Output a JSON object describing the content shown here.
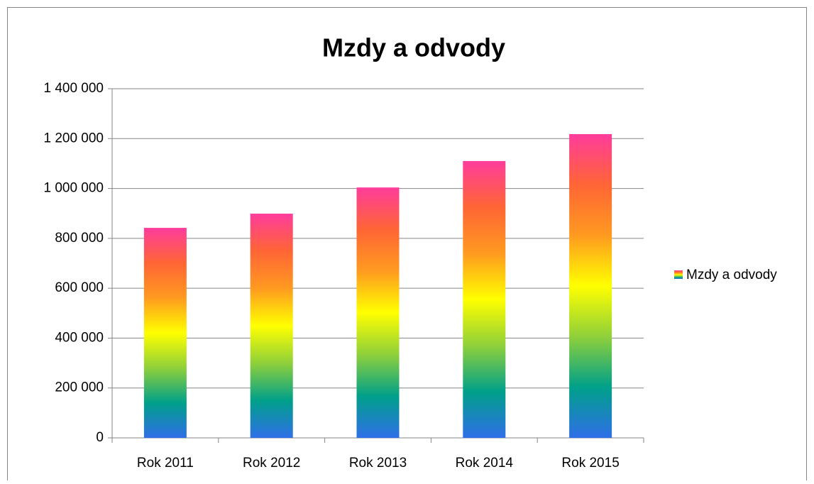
{
  "chart_data": {
    "type": "bar",
    "title": "Mzdy a odvody",
    "categories": [
      "Rok 2011",
      "Rok 2012",
      "Rok 2013",
      "Rok 2014",
      "Rok 2015"
    ],
    "series": [
      {
        "name": "Mzdy a odvody",
        "colors": [
          "#2f6fe8",
          "#00a08a",
          "#8fd03a",
          "#ffff00",
          "#ff9a20",
          "#ff6535",
          "#ff3c9c"
        ],
        "values": [
          842000,
          899000,
          1004000,
          1110000,
          1218000
        ]
      }
    ],
    "ylim": [
      0,
      1400000
    ],
    "yticks": [
      0,
      {
        "value": 200000,
        "label": "200 000"
      },
      {
        "value": 400000,
        "label": "400 000"
      },
      {
        "value": 600000,
        "label": "600 000"
      },
      {
        "value": 800000,
        "label": "800 000"
      },
      {
        "value": 1000000,
        "label": "1 000 000"
      },
      {
        "value": 1200000,
        "label": "1 200 000"
      },
      {
        "value": 1400000,
        "label": "1 400 000"
      }
    ],
    "grid": true,
    "legend": "right"
  }
}
